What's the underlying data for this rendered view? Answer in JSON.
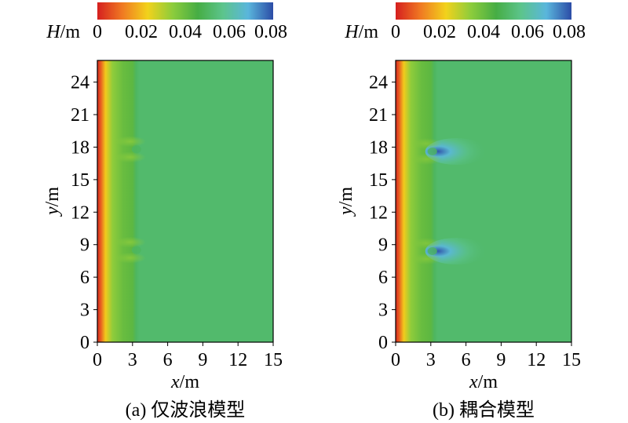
{
  "colorbar": {
    "label_var": "H",
    "label_unit": "/m",
    "ticks": [
      "0",
      "0.02",
      "0.04",
      "0.06",
      "0.08"
    ],
    "range": [
      0,
      0.08
    ],
    "colors": [
      "#d51f1f",
      "#f07a22",
      "#f2d21c",
      "#8ccc3c",
      "#46ad44",
      "#5cc48c",
      "#5ab6dc",
      "#2c4ca6"
    ]
  },
  "chart_data": [
    {
      "type": "heatmap",
      "caption": "(a) 仅波浪模型",
      "xlabel_var": "x",
      "xlabel_unit": "/m",
      "ylabel_var": "y",
      "ylabel_unit": "/m",
      "xlim": [
        0,
        15
      ],
      "ylim": [
        0,
        26
      ],
      "xticks": [
        "0",
        "3",
        "6",
        "9",
        "12",
        "15"
      ],
      "yticks": [
        "0",
        "3",
        "6",
        "9",
        "12",
        "15",
        "18",
        "21",
        "24"
      ],
      "background_H": 0.052,
      "profile_x": [
        0,
        0.3,
        0.7,
        1.3,
        2.2,
        3.0,
        3.3,
        3.6,
        15
      ],
      "profile_H": [
        0.001,
        0.008,
        0.022,
        0.034,
        0.04,
        0.042,
        0.05,
        0.052,
        0.052
      ],
      "features": [
        {
          "kind": "diffraction",
          "x": 3.2,
          "y": 17.8,
          "H": 0.035
        },
        {
          "kind": "diffraction",
          "x": 3.2,
          "y": 8.5,
          "H": 0.035
        }
      ]
    },
    {
      "type": "heatmap",
      "caption": "(b) 耦合模型",
      "xlabel_var": "x",
      "xlabel_unit": "/m",
      "ylabel_var": "y",
      "ylabel_unit": "/m",
      "xlim": [
        0,
        15
      ],
      "ylim": [
        0,
        26
      ],
      "xticks": [
        "0",
        "3",
        "6",
        "9",
        "12",
        "15"
      ],
      "yticks": [
        "0",
        "3",
        "6",
        "9",
        "12",
        "15",
        "18",
        "21",
        "24"
      ],
      "background_H": 0.052,
      "profile_x": [
        0,
        0.3,
        0.7,
        1.3,
        2.2,
        3.0,
        3.3,
        3.6,
        15
      ],
      "profile_H": [
        0.001,
        0.008,
        0.022,
        0.034,
        0.04,
        0.042,
        0.05,
        0.052,
        0.052
      ],
      "features": [
        {
          "kind": "peak",
          "x": 4.0,
          "y": 17.6,
          "H": 0.079
        },
        {
          "kind": "peak",
          "x": 4.0,
          "y": 8.4,
          "H": 0.079
        },
        {
          "kind": "diffraction",
          "x": 3.0,
          "y": 17.6,
          "H": 0.036
        },
        {
          "kind": "diffraction",
          "x": 3.0,
          "y": 8.4,
          "H": 0.036
        }
      ]
    }
  ]
}
